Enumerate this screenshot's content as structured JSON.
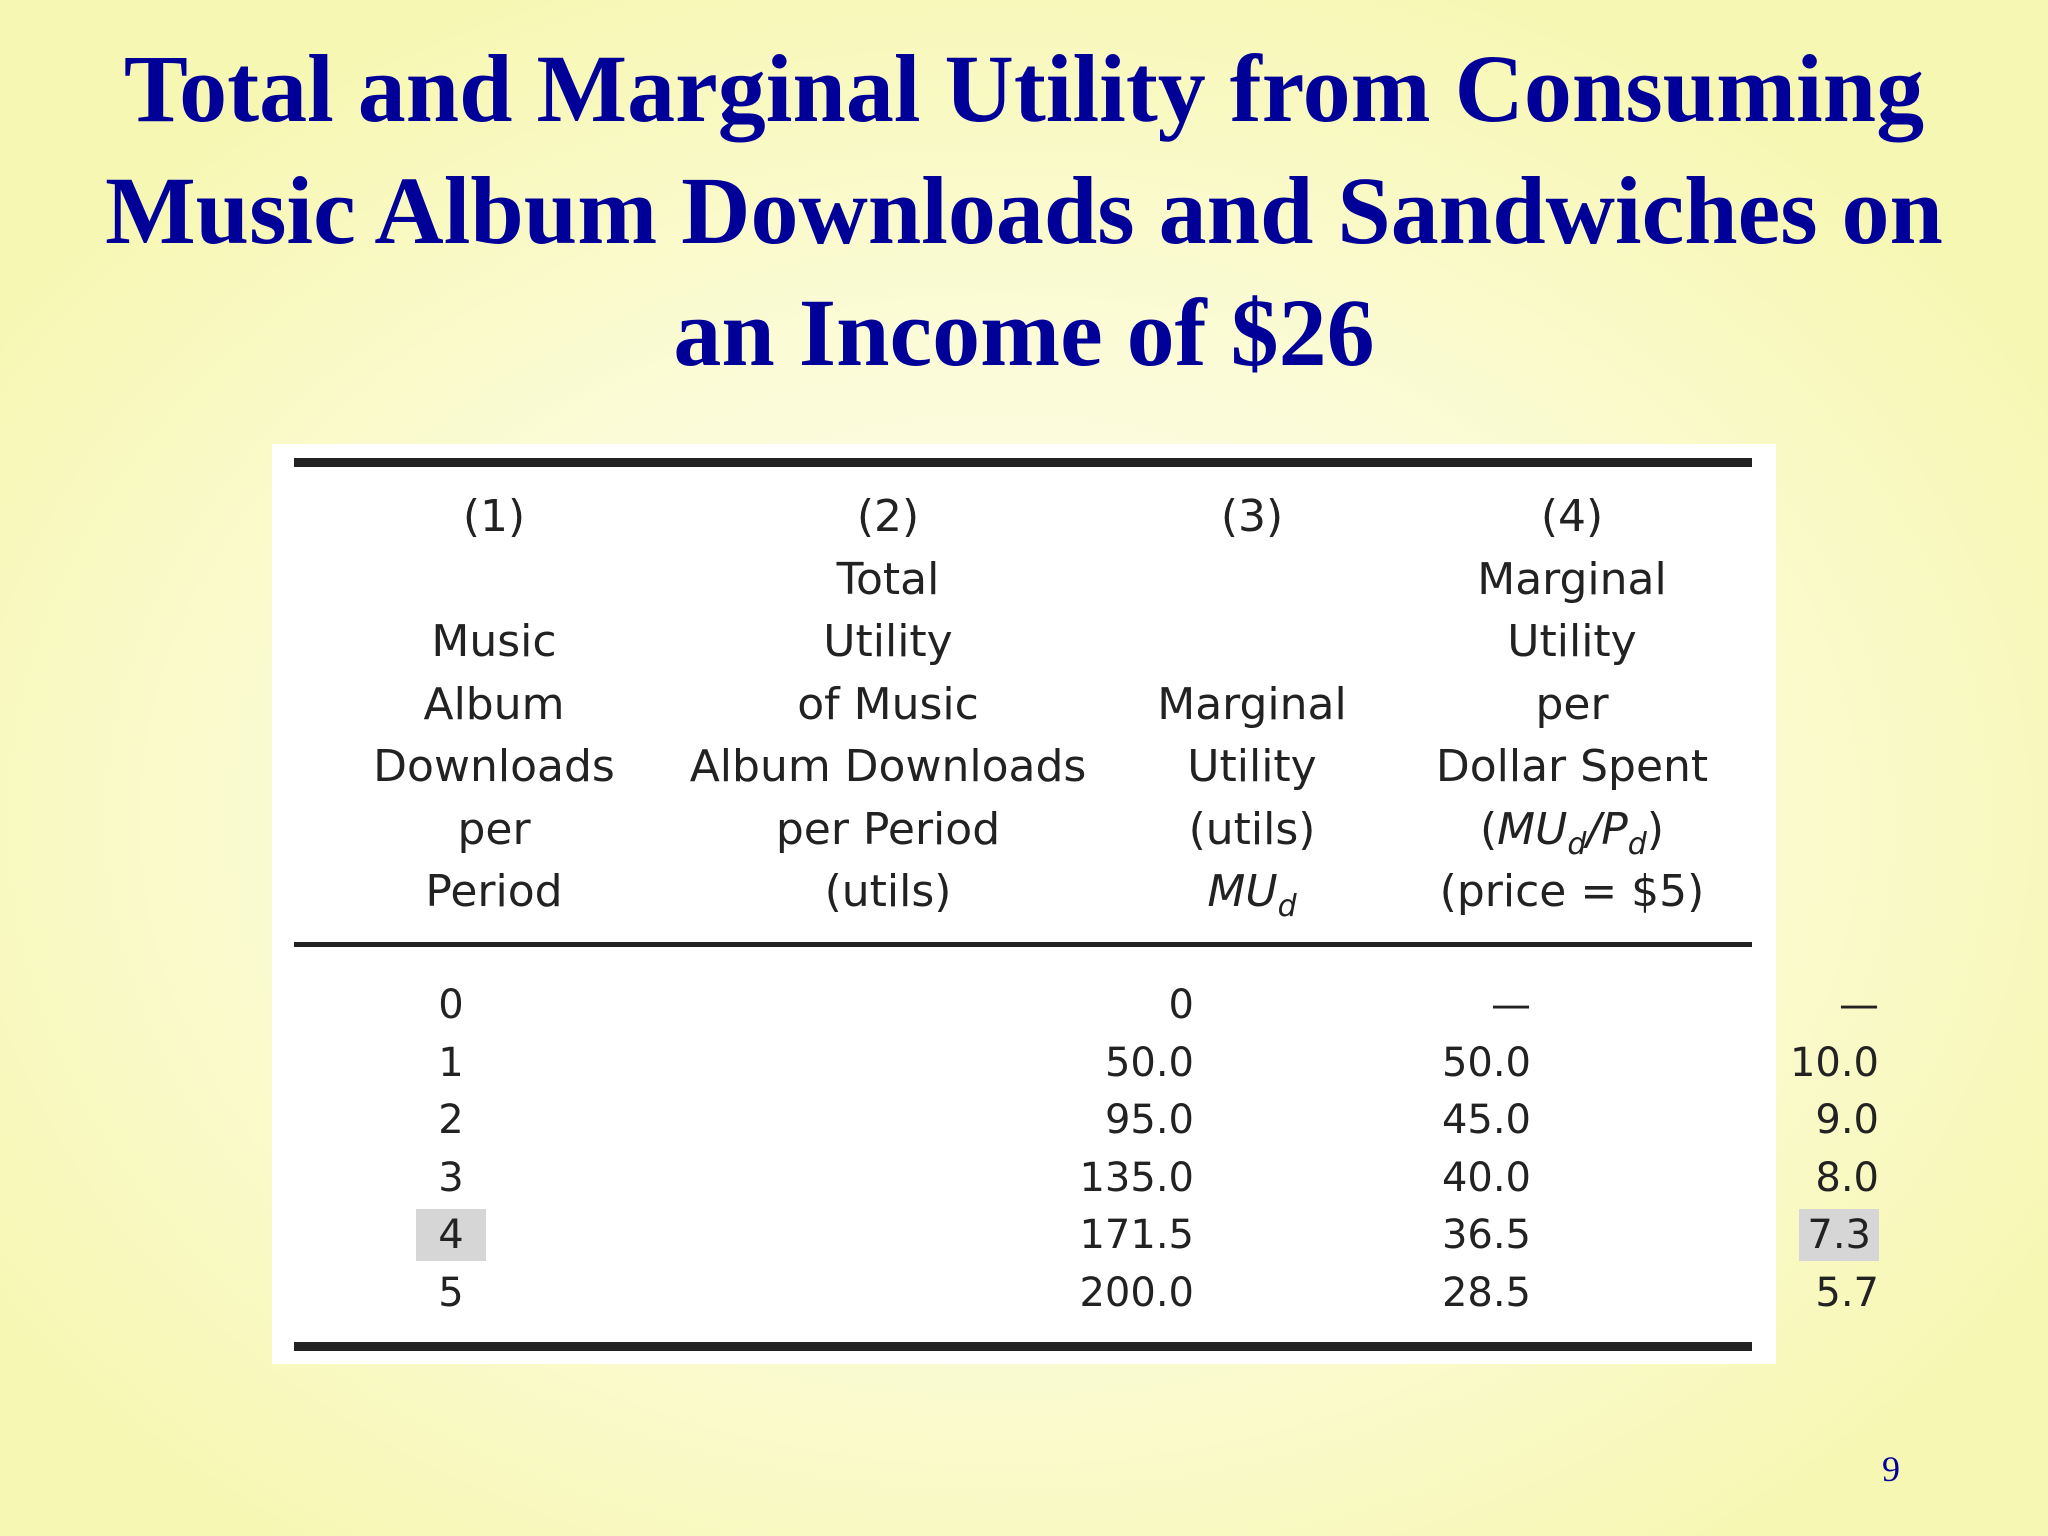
{
  "slide": {
    "title_lines": [
      "Total and Marginal Utility from Consuming",
      "Music Album Downloads and Sandwiches on",
      "an Income of $26"
    ],
    "page_number": "9"
  },
  "table": {
    "columns": [
      {
        "number": "(1)",
        "lines": [
          "",
          "Music",
          "Album",
          "Downloads",
          "per",
          "Period"
        ]
      },
      {
        "number": "(2)",
        "lines": [
          "Total",
          "Utility",
          "of Music",
          "Album Downloads",
          "per Period",
          "(utils)"
        ]
      },
      {
        "number": "(3)",
        "lines": [
          "",
          "",
          "Marginal",
          "Utility",
          "(utils)"
        ],
        "symbol": "MU",
        "symbol_sub": "d"
      },
      {
        "number": "(4)",
        "lines": [
          "Marginal",
          "Utility",
          "per",
          "Dollar Spent"
        ],
        "ratio": {
          "open": "(",
          "num": "MU",
          "num_sub": "d",
          "sep": "/",
          "den": "P",
          "den_sub": "d",
          "close": ")"
        },
        "price_note": "(price = $5)"
      }
    ],
    "rows": [
      {
        "downloads": "0",
        "total_utility": "0",
        "marginal_utility": "—",
        "mu_per_dollar": "—"
      },
      {
        "downloads": "1",
        "total_utility": "50.0",
        "marginal_utility": "50.0",
        "mu_per_dollar": "10.0"
      },
      {
        "downloads": "2",
        "total_utility": "95.0",
        "marginal_utility": "45.0",
        "mu_per_dollar": "9.0"
      },
      {
        "downloads": "3",
        "total_utility": "135.0",
        "marginal_utility": "40.0",
        "mu_per_dollar": "8.0"
      },
      {
        "downloads": "4",
        "total_utility": "171.5",
        "marginal_utility": "36.5",
        "mu_per_dollar": "7.3",
        "highlight": true
      },
      {
        "downloads": "5",
        "total_utility": "200.0",
        "marginal_utility": "28.5",
        "mu_per_dollar": "5.7"
      }
    ],
    "colors": {
      "rule": "#222222",
      "highlight": "#d6d6d6",
      "title": "#000099"
    }
  }
}
